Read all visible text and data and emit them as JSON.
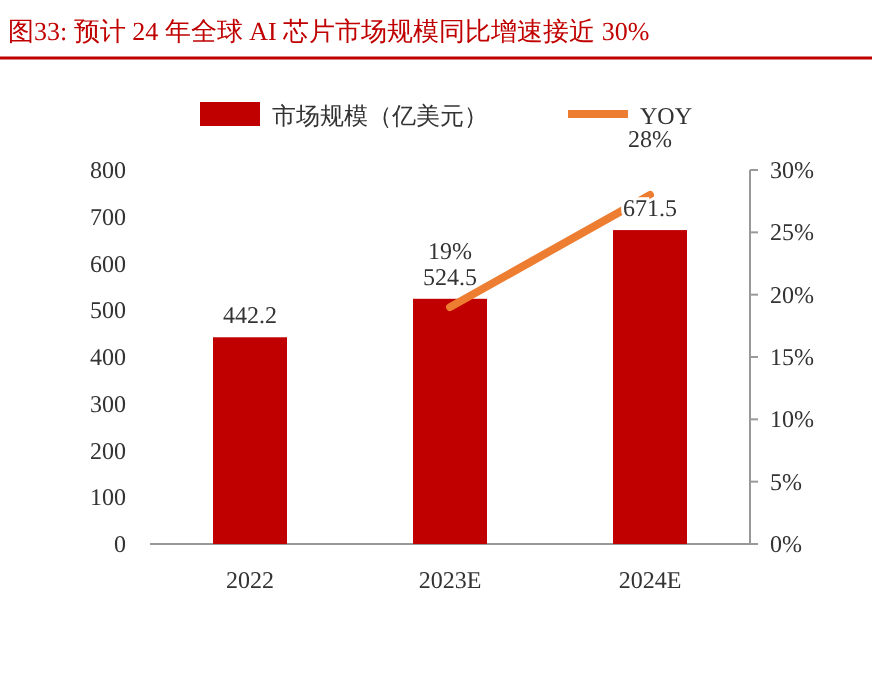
{
  "chart_data": {
    "type": "bar",
    "title": "图33:  预计 24 年全球 AI 芯片市场规模同比增速接近 30%",
    "categories": [
      "2022",
      "2023E",
      "2024E"
    ],
    "series": [
      {
        "name": "市场规模（亿美元）",
        "color": "#c00000",
        "values": [
          442.2,
          524.5,
          671.5
        ],
        "value_labels": [
          "442.2",
          "524.5",
          "671.5"
        ]
      },
      {
        "name": "YOY",
        "type": "line",
        "axis": "y2",
        "color": "#ed7d31",
        "values": [
          null,
          19,
          28
        ],
        "value_labels": [
          null,
          "19%",
          "28%"
        ]
      }
    ],
    "ylim": [
      0,
      800
    ],
    "yticks": [
      0,
      100,
      200,
      300,
      400,
      500,
      600,
      700,
      800
    ],
    "y2lim": [
      0,
      30
    ],
    "y2ticks": [
      {
        "value": 0,
        "label": "0%"
      },
      {
        "value": 5,
        "label": "5%"
      },
      {
        "value": 10,
        "label": "10%"
      },
      {
        "value": 15,
        "label": "15%"
      },
      {
        "value": 20,
        "label": "20%"
      },
      {
        "value": 25,
        "label": "25%"
      },
      {
        "value": 30,
        "label": "30%"
      }
    ],
    "legend": "top",
    "grid": false
  }
}
